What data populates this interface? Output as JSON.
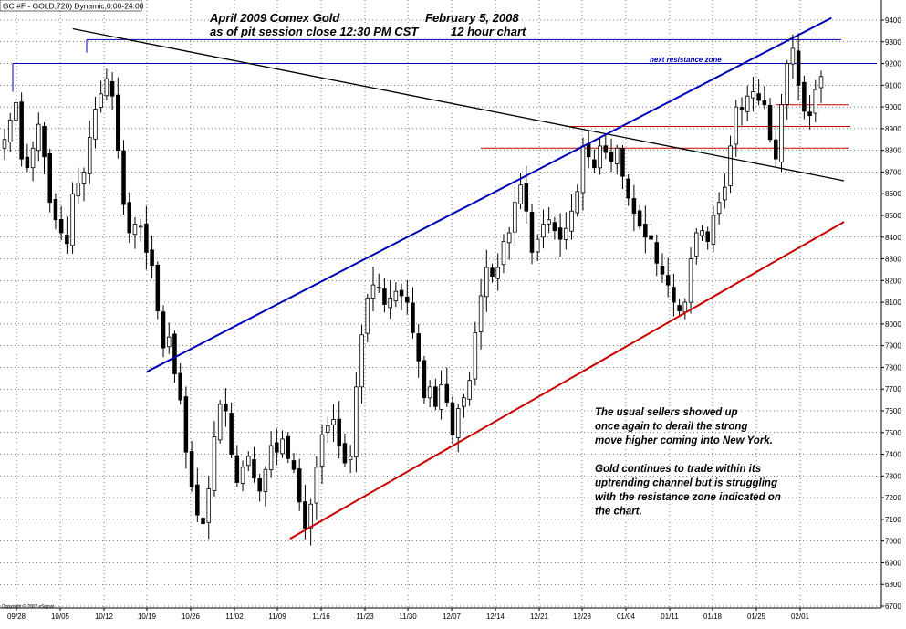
{
  "header": {
    "symbol_text": "GC #F - GOLD,720) Dynamic,0:00-24:00",
    "title_line1": "April 2009 Comex Gold",
    "date": "February 5, 2008",
    "title_line2": "as of pit session close 12:30 PM CST",
    "timeframe": "12 hour chart",
    "resistance_label": "next resistance zone",
    "copyright": "Copyright © 2007 eSignal"
  },
  "annotation": {
    "lines": [
      "The usual sellers showed up",
      "once again to derail the strong",
      "move higher coming into New York.",
      "",
      "Gold continues to trade within its",
      "uptrending channel but is struggling",
      "with the resistance zone indicated on",
      "the chart."
    ]
  },
  "chart_data": {
    "type": "candlestick",
    "title": "April 2009 Comex Gold",
    "subtitle": "as of pit session close 12:30 PM CST",
    "ylim": [
      6700,
      9450
    ],
    "y_ticks": [
      6700,
      6800,
      6900,
      7000,
      7100,
      7200,
      7300,
      7400,
      7500,
      7600,
      7700,
      7800,
      7900,
      8000,
      8100,
      8200,
      8300,
      8400,
      8500,
      8600,
      8700,
      8800,
      8900,
      9000,
      9100,
      9200,
      9300,
      9400
    ],
    "x_ticks": [
      "09/28",
      "10/05",
      "10/12",
      "10/19",
      "10/26",
      "11/02",
      "11/09",
      "11/16",
      "11/23",
      "11/30",
      "12/07",
      "12/14",
      "12/21",
      "12/28",
      "01/04",
      "01/11",
      "01/18",
      "01/25",
      "02/01"
    ],
    "closes": [
      8850,
      8940,
      9020,
      8760,
      8720,
      8810,
      8920,
      8770,
      8560,
      8480,
      8420,
      8370,
      8600,
      8650,
      8700,
      8860,
      8990,
      9060,
      9130,
      9050,
      8800,
      8550,
      8420,
      8460,
      8450,
      8330,
      8270,
      8060,
      7890,
      7940,
      7770,
      7650,
      7410,
      7250,
      7120,
      7080,
      7240,
      7480,
      7630,
      7600,
      7400,
      7270,
      7340,
      7390,
      7290,
      7230,
      7330,
      7440,
      7410,
      7470,
      7380,
      7330,
      7180,
      7060,
      7170,
      7340,
      7490,
      7530,
      7560,
      7440,
      7360,
      7390,
      7710,
      7950,
      8120,
      8180,
      8170,
      8090,
      8120,
      8150,
      8130,
      8100,
      7960,
      7830,
      7660,
      7710,
      7620,
      7720,
      7640,
      7490,
      7610,
      7660,
      7740,
      7960,
      8130,
      8260,
      8220,
      8260,
      8380,
      8420,
      8560,
      8640,
      8520,
      8330,
      8390,
      8460,
      8480,
      8430,
      8390,
      8440,
      8520,
      8610,
      8820,
      8770,
      8720,
      8820,
      8790,
      8750,
      8810,
      8680,
      8580,
      8510,
      8450,
      8400,
      8390,
      8280,
      8230,
      8180,
      8100,
      8060,
      8100,
      8300,
      8420,
      8430,
      8380,
      8500,
      8560,
      8630,
      8820,
      9000,
      8990,
      9050,
      9070,
      9030,
      9010,
      8850,
      8760,
      9010,
      9200,
      9270,
      9100,
      8980,
      8960,
      9080,
      9140
    ],
    "trendlines": [
      {
        "name": "down-trendline",
        "color": "#000000",
        "from": [
          "10/07",
          9360
        ],
        "to": [
          "02/08",
          8660
        ]
      },
      {
        "name": "upper-channel",
        "color": "#0000b4",
        "from": [
          "10/19",
          7780
        ],
        "to": [
          "02/06",
          9410
        ]
      },
      {
        "name": "lower-channel",
        "color": "#c80000",
        "from": [
          "11/11",
          7010
        ],
        "to": [
          "02/08",
          8470
        ]
      }
    ],
    "resistance_levels": [
      {
        "value": 9310,
        "color": "#0000b4"
      },
      {
        "value": 9200,
        "color": "#0000b4"
      },
      {
        "value": 9010,
        "color": "#c80000"
      },
      {
        "value": 8910,
        "color": "#c80000"
      },
      {
        "value": 8810,
        "color": "#c80000"
      }
    ],
    "colors": {
      "candle": "#000000",
      "grid": "#000000",
      "background": "#ffffff"
    }
  }
}
